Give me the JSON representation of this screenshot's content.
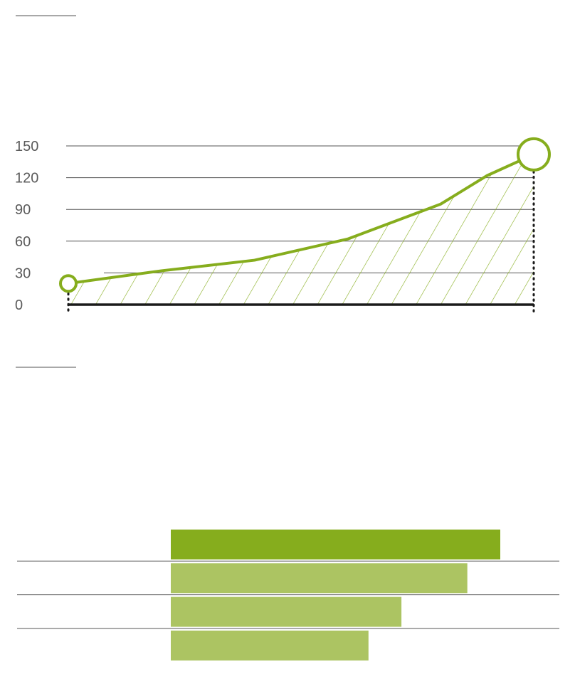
{
  "colors": {
    "accent": "#86ad1d",
    "accent_light": "#acc462",
    "grid": "#555555",
    "axis": "#1a1a1a",
    "tick_text": "#5a5a5a"
  },
  "chart_data": [
    {
      "type": "area",
      "ylim": [
        0,
        150
      ],
      "yticks": [
        "0",
        "30",
        "60",
        "90",
        "120",
        "150"
      ],
      "grid": true,
      "x": [
        0,
        1,
        2,
        3,
        4,
        5,
        6
      ],
      "values": [
        20,
        32,
        42,
        62,
        95,
        140,
        140
      ],
      "point_x": [
        0,
        0.2,
        0.4,
        0.6,
        0.8,
        0.9,
        1.0
      ],
      "points": [
        20,
        32,
        42,
        62,
        95,
        122,
        142
      ],
      "markers": [
        "start",
        "end"
      ]
    },
    {
      "type": "bar",
      "orientation": "horizontal",
      "values": [
        100,
        90,
        70,
        60
      ]
    }
  ]
}
